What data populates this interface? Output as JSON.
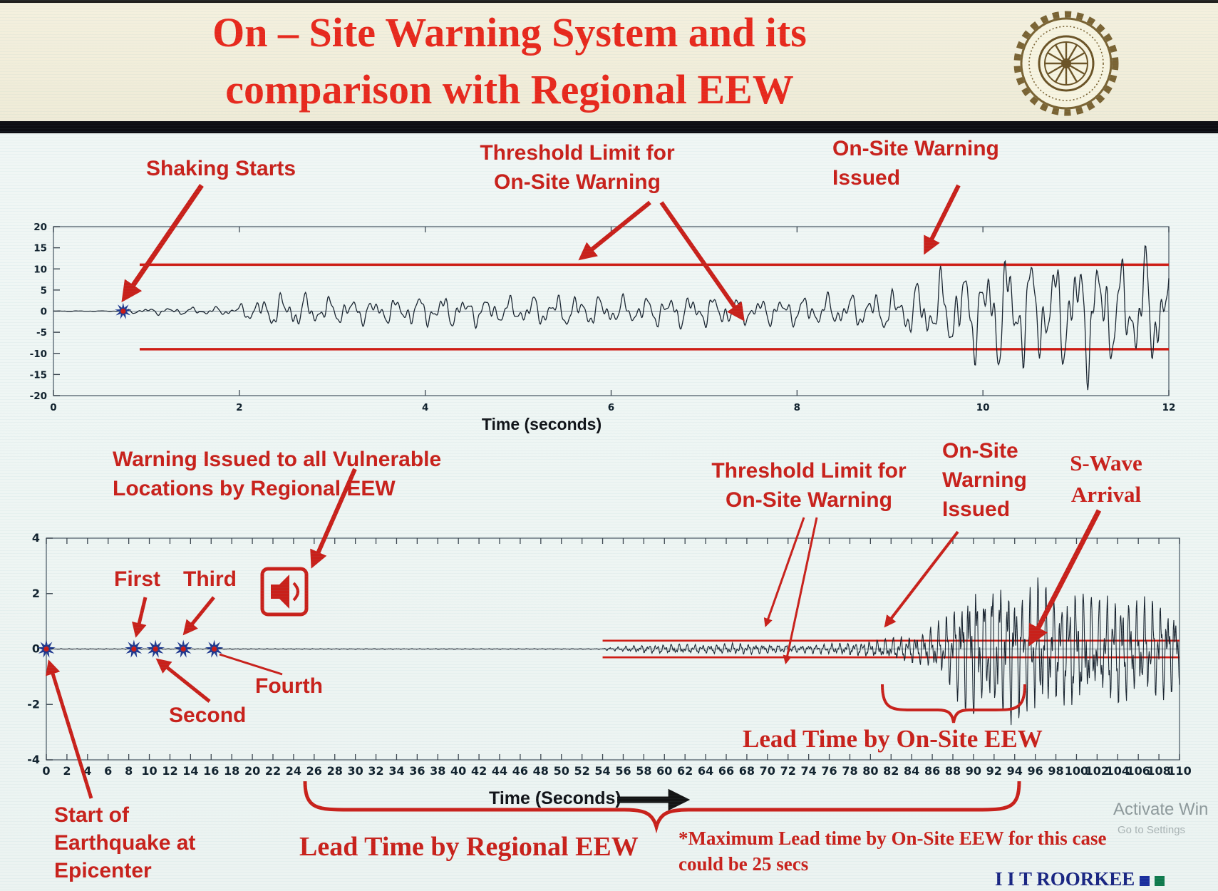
{
  "slide": {
    "title_line1": "On – Site Warning System and its",
    "title_line2": "comparison with Regional EEW",
    "brand": "I I T ROORKEE",
    "watermark_line1": "Activate Win",
    "watermark_line2": "Go to Settings"
  },
  "colors": {
    "title_red": "#e8281c",
    "accent_red": "#c9201a",
    "waveform_ink": "#1a2430",
    "threshold_red": "#d01c14",
    "star_blue": "#20398f",
    "star_center_red": "#cc1a14",
    "brand_navy": "#192582",
    "header_cream": "#f4f0de"
  },
  "top_panel": {
    "shaking_starts": "Shaking Starts",
    "threshold_line1": "Threshold Limit for",
    "threshold_line2": "On-Site Warning",
    "issued_line1": "On-Site Warning",
    "issued_line2": "Issued"
  },
  "bottom_panel": {
    "regional_line1": "Warning Issued to all Vulnerable",
    "regional_line2": "Locations by Regional EEW",
    "first": "First",
    "second": "Second",
    "third": "Third",
    "fourth": "Fourth",
    "threshold_line1": "Threshold Limit for",
    "threshold_line2": "On-Site Warning",
    "issued_line1": "On-Site",
    "issued_line2": "Warning",
    "issued_line3": "Issued",
    "swave_line1": "S-Wave",
    "swave_line2": "Arrival",
    "lead_onsite": "Lead Time by On-Site EEW",
    "epicenter_line1": "Start of",
    "epicenter_line2": "Earthquake at",
    "epicenter_line3": "Epicenter",
    "lead_regional": "Lead Time by Regional EEW",
    "max_lead_line1": "*Maximum Lead time by On-Site EEW for this case",
    "max_lead_line2": "could be 25 secs"
  },
  "chart_data": [
    {
      "type": "line",
      "title": "",
      "xlabel": "Time (seconds)",
      "ylabel": "",
      "xlim": [
        0,
        12
      ],
      "xticks": [
        0,
        2,
        4,
        6,
        8,
        10,
        12
      ],
      "ylim": [
        -20,
        20
      ],
      "yticks": [
        20,
        15,
        10,
        5,
        0,
        -5,
        -10,
        -15,
        -20
      ],
      "grid": false,
      "legend": "none",
      "threshold_upper": 11,
      "threshold_lower": -9,
      "shaking_start_time": 0.75,
      "onsite_warning_time": 9.35,
      "envelope": [
        [
          0.75,
          0.5
        ],
        [
          1.1,
          0.9
        ],
        [
          1.9,
          1.1
        ],
        [
          2.2,
          3.2
        ],
        [
          2.5,
          5.0
        ],
        [
          2.9,
          3.6
        ],
        [
          3.5,
          3.2
        ],
        [
          4.1,
          4.2
        ],
        [
          4.8,
          3.4
        ],
        [
          5.5,
          4.3
        ],
        [
          6.2,
          3.6
        ],
        [
          6.9,
          4.4
        ],
        [
          7.6,
          3.4
        ],
        [
          8.2,
          4.1
        ],
        [
          8.8,
          4.6
        ],
        [
          9.2,
          6.5
        ],
        [
          9.5,
          9.5
        ],
        [
          9.9,
          12
        ],
        [
          10.3,
          16
        ],
        [
          10.7,
          13
        ],
        [
          11.1,
          17
        ],
        [
          11.5,
          13
        ],
        [
          11.8,
          16
        ],
        [
          12,
          14
        ]
      ]
    },
    {
      "type": "line",
      "title": "",
      "xlabel": "Time (Seconds)",
      "ylabel": "",
      "xlim": [
        0,
        110
      ],
      "xtick_step": 2,
      "ylim": [
        -4,
        4
      ],
      "yticks": [
        4,
        2,
        0,
        -2,
        -4
      ],
      "grid": false,
      "legend": "none",
      "threshold_upper": 0.3,
      "threshold_lower": -0.3,
      "threshold_start_time": 54,
      "event_times": {
        "epicenter": 0,
        "p_wave_triggers": [
          8.5,
          10.6,
          13.3,
          16.3
        ],
        "regional_warning": 23.2,
        "onsite_warning": 81,
        "s_wave_arrival": 94,
        "max_onsite_lead_secs": 25
      },
      "envelope": [
        [
          54,
          0.04
        ],
        [
          56,
          0.1
        ],
        [
          58,
          0.16
        ],
        [
          61,
          0.2
        ],
        [
          64,
          0.17
        ],
        [
          67,
          0.22
        ],
        [
          70,
          0.18
        ],
        [
          73,
          0.15
        ],
        [
          76,
          0.2
        ],
        [
          79,
          0.28
        ],
        [
          81,
          0.38
        ],
        [
          83,
          0.5
        ],
        [
          85,
          0.65
        ],
        [
          87,
          1.1
        ],
        [
          88.5,
          2.0
        ],
        [
          90,
          2.9
        ],
        [
          91,
          2.2
        ],
        [
          92,
          2.7
        ],
        [
          93.5,
          2.9
        ],
        [
          95,
          2.3
        ],
        [
          96.5,
          2.7
        ],
        [
          98,
          2.1
        ],
        [
          100,
          2.5
        ],
        [
          102,
          1.9
        ],
        [
          104,
          2.3
        ],
        [
          106,
          1.8
        ],
        [
          108,
          2.0
        ],
        [
          110,
          1.6
        ]
      ]
    }
  ]
}
